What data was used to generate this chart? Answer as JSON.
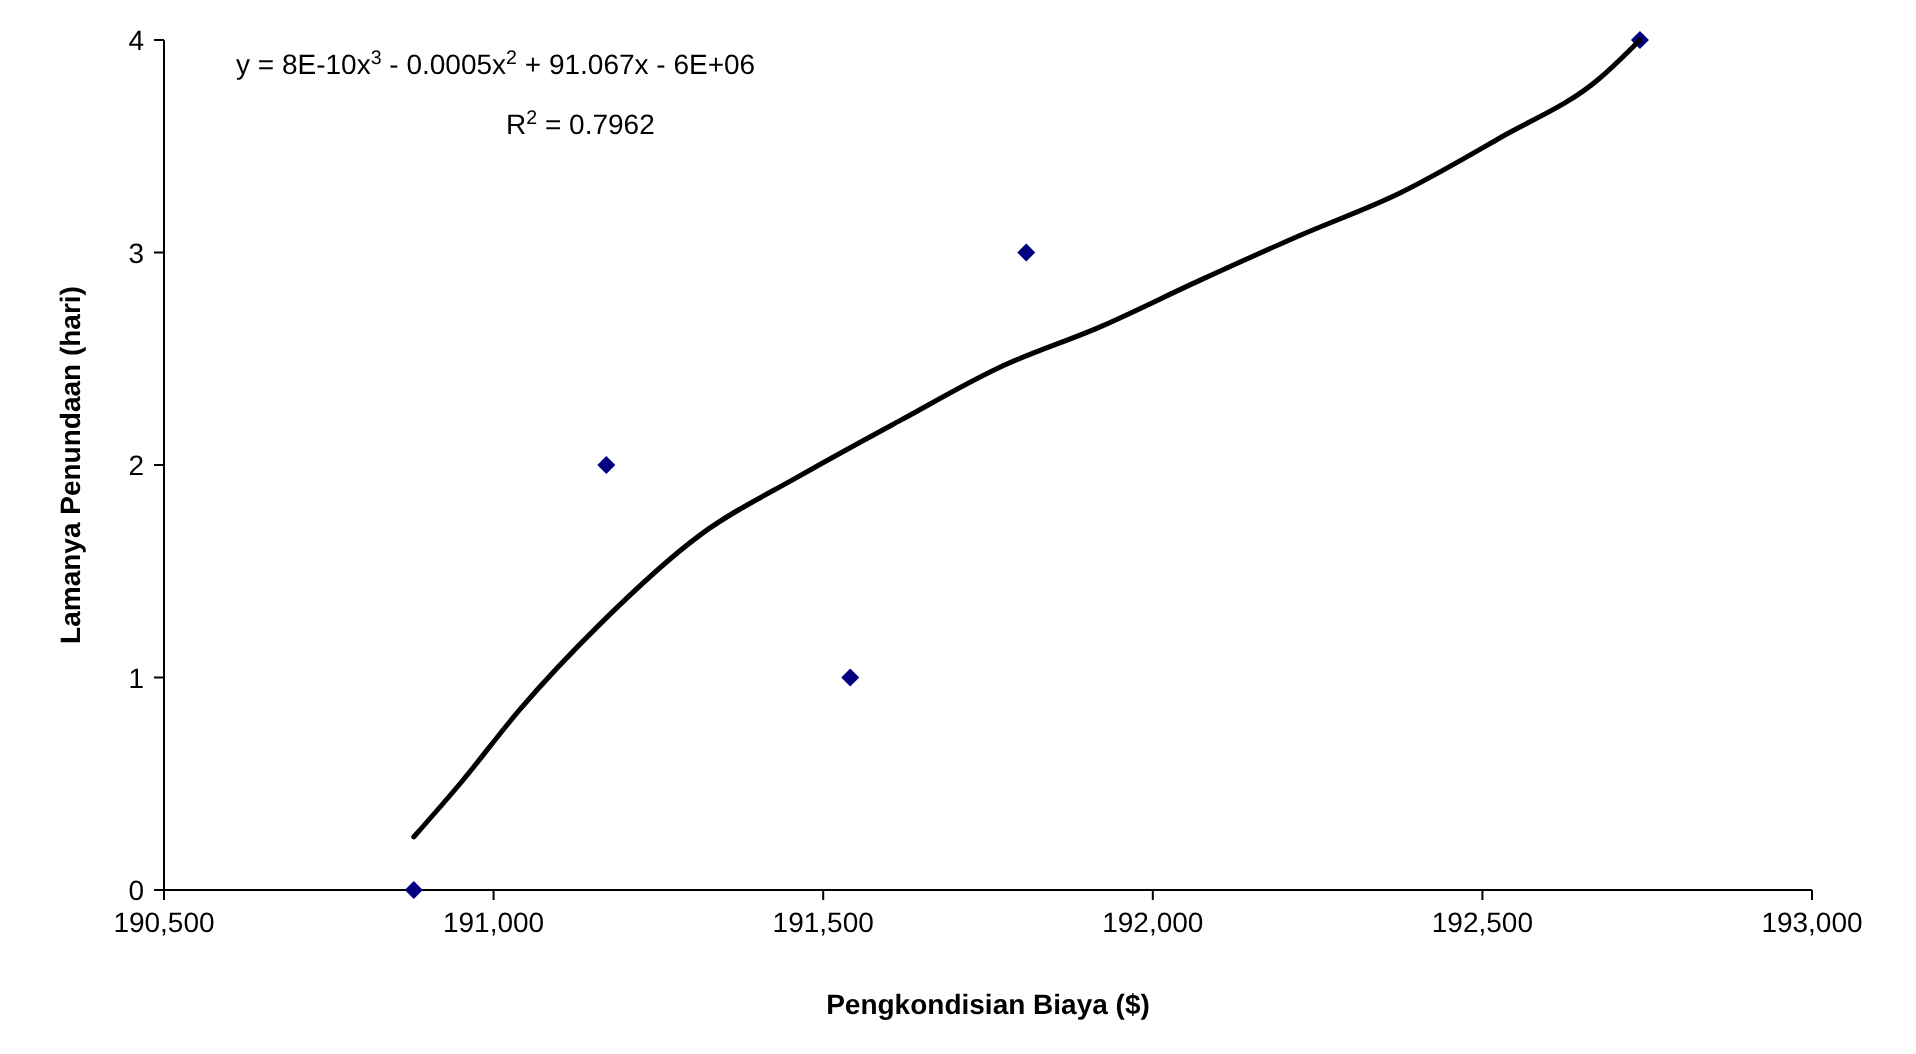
{
  "chart_data": {
    "type": "scatter",
    "xlabel": "Pengkondisian Biaya ($)",
    "ylabel": "Lamanya Penundaan (hari)",
    "annotations": [
      "y = 8E-10x$^{3}$ - 0.0005x$^{2}$ + 91.067x - 6E+06",
      "R$^{2}$ = 0.7962"
    ],
    "xlim": [
      190500,
      193000
    ],
    "xticks": [
      {
        "value": 190500,
        "label": "190,500"
      },
      {
        "value": 191000,
        "label": "191,000"
      },
      {
        "value": 191500,
        "label": "191,500"
      },
      {
        "value": 192000,
        "label": "192,000"
      },
      {
        "value": 192500,
        "label": "192,500"
      },
      {
        "value": 193000,
        "label": "193,000"
      }
    ],
    "ylim": [
      0,
      4
    ],
    "yticks": [
      0,
      1,
      2,
      3,
      4
    ],
    "grid": false,
    "marker": "diamond",
    "series": [
      {
        "color": "#000080",
        "x": [
          190879,
          191171,
          191541,
          191808,
          192739
        ],
        "values": [
          0,
          2,
          1,
          3,
          4
        ]
      },
      {
        "type": "line",
        "color": "#000000",
        "marker": "none",
        "line_style": "solid",
        "x": [
          190879,
          190949,
          191040,
          191161,
          191313,
          191465,
          191617,
          191768,
          191920,
          192072,
          192223,
          192375,
          192527,
          192678,
          192739
        ],
        "values": [
          0.25,
          0.5,
          0.85,
          1.25,
          1.67,
          1.95,
          2.21,
          2.46,
          2.65,
          2.87,
          3.08,
          3.28,
          3.54,
          3.82,
          4.0
        ]
      }
    ]
  }
}
